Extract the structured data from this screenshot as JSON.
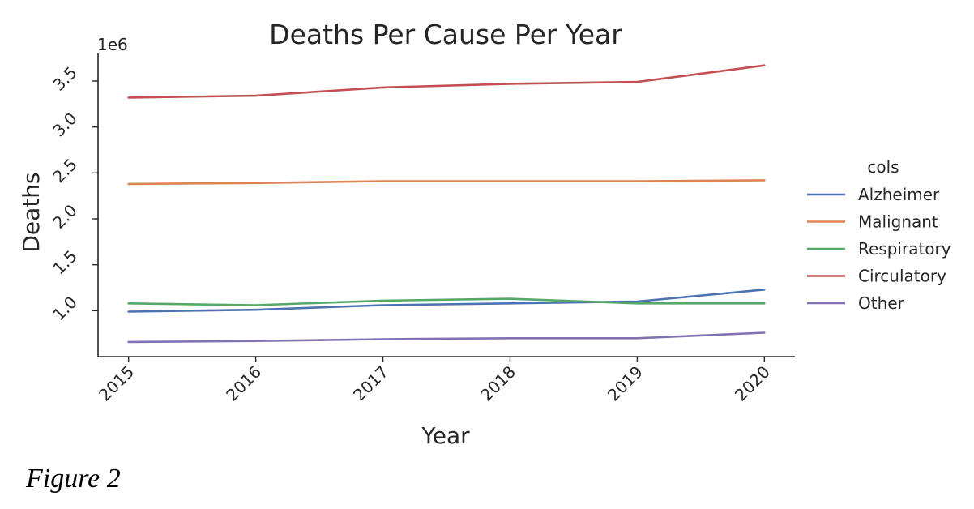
{
  "chart_data": {
    "type": "line",
    "title": "Deaths Per Cause Per Year",
    "xlabel": "Year",
    "ylabel": "Deaths",
    "offset_text": "1e6",
    "x": [
      2015,
      2016,
      2017,
      2018,
      2019,
      2020
    ],
    "xticks": [
      "2015",
      "2016",
      "2017",
      "2018",
      "2019",
      "2020"
    ],
    "yticks": [
      1.0,
      1.5,
      2.0,
      2.5,
      3.0,
      3.5
    ],
    "ytick_labels": [
      "1.0",
      "1.5",
      "2.0",
      "2.5",
      "3.0",
      "3.5"
    ],
    "xlim": [
      2014.76,
      2020.24
    ],
    "ylim": [
      0.5,
      3.8
    ],
    "grid": false,
    "legend_title": "cols",
    "legend_position": "right",
    "series": [
      {
        "name": "Alzheimer",
        "color": "#4c72b0",
        "values": [
          0.99,
          1.01,
          1.06,
          1.08,
          1.1,
          1.23
        ]
      },
      {
        "name": "Malignant",
        "color": "#dd8452",
        "values": [
          2.38,
          2.39,
          2.41,
          2.41,
          2.41,
          2.42
        ]
      },
      {
        "name": "Respiratory",
        "color": "#55a868",
        "values": [
          1.08,
          1.06,
          1.11,
          1.13,
          1.08,
          1.08
        ]
      },
      {
        "name": "Circulatory",
        "color": "#c44e52",
        "values": [
          3.32,
          3.34,
          3.43,
          3.47,
          3.49,
          3.67
        ]
      },
      {
        "name": "Other",
        "color": "#8172b3",
        "values": [
          0.66,
          0.67,
          0.69,
          0.7,
          0.7,
          0.76
        ]
      }
    ]
  },
  "figure": {
    "caption": "Figure 2"
  }
}
